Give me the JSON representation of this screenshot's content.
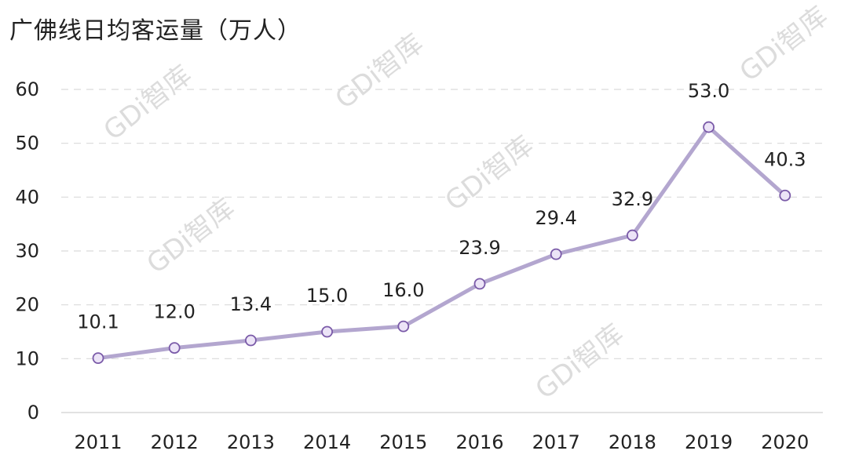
{
  "title": "广佛线日均客运量（万人）",
  "watermark_text": "GDi智库",
  "colors": {
    "line": "#b3a6cf",
    "marker_fill": "#ece4f7",
    "marker_stroke": "#7a5aa8",
    "grid": "#d9d9d9",
    "axis": "#d9d9d9",
    "text": "#222222",
    "watermark": "#d6d6d6"
  },
  "chart_data": {
    "type": "line",
    "title": "广佛线日均客运量（万人）",
    "categories": [
      "2011",
      "2012",
      "2013",
      "2014",
      "2015",
      "2016",
      "2017",
      "2018",
      "2019",
      "2020"
    ],
    "values": [
      10.1,
      12.0,
      13.4,
      15.0,
      16.0,
      23.9,
      29.4,
      32.9,
      53.0,
      40.3
    ],
    "value_labels": [
      "10.1",
      "12.0",
      "13.4",
      "15.0",
      "16.0",
      "23.9",
      "29.4",
      "32.9",
      "53.0",
      "40.3"
    ],
    "xlabel": "",
    "ylabel": "",
    "ylim": [
      0,
      60
    ],
    "yticks": [
      "0",
      "10",
      "20",
      "30",
      "40",
      "50",
      "60"
    ],
    "grid": true,
    "grid_style": "dashed-horizontal",
    "legend": "none"
  }
}
